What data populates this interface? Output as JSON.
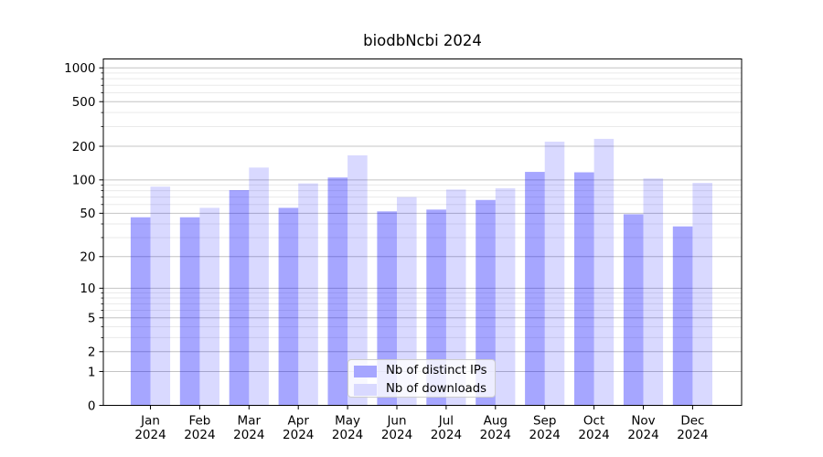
{
  "chart_data": {
    "type": "bar",
    "title": "biodbNcbi 2024",
    "categories": [
      "Jan",
      "Feb",
      "Mar",
      "Apr",
      "May",
      "Jun",
      "Jul",
      "Aug",
      "Sep",
      "Oct",
      "Nov",
      "Dec"
    ],
    "x_tick_second_line": "2024",
    "series": [
      {
        "name": "Nb of distinct IPs",
        "color": "#0000ff",
        "alpha": 0.35,
        "rendered_color": "#a6a6ff",
        "values": [
          46,
          46,
          81,
          56,
          105,
          52,
          54,
          66,
          118,
          117,
          49,
          38
        ]
      },
      {
        "name": "Nb of downloads",
        "color": "#0000ff",
        "alpha": 0.15,
        "rendered_color": "#d9d9ff",
        "values": [
          87,
          56,
          129,
          93,
          166,
          70,
          82,
          84,
          220,
          233,
          103,
          94
        ]
      }
    ],
    "yscale": "log1p",
    "ylim": [
      0,
      1200
    ],
    "yticks": [
      0,
      1,
      2,
      5,
      10,
      20,
      50,
      100,
      200,
      500,
      1000
    ],
    "yticks_minor": [
      3,
      4,
      6,
      7,
      8,
      9,
      30,
      40,
      60,
      70,
      80,
      90,
      300,
      400,
      600,
      700,
      800,
      900
    ],
    "grid": true,
    "legend_position": "lower center (inside plot)",
    "xlabel": "",
    "ylabel": ""
  },
  "colors": {
    "background": "#ffffff",
    "spine": "#000000",
    "grid_major": "#c4c4c4",
    "grid_minor": "#eaeaea",
    "legend_border": "#cccccc",
    "legend_background": "rgba(255,255,255,0.8)",
    "text": "#000000"
  }
}
